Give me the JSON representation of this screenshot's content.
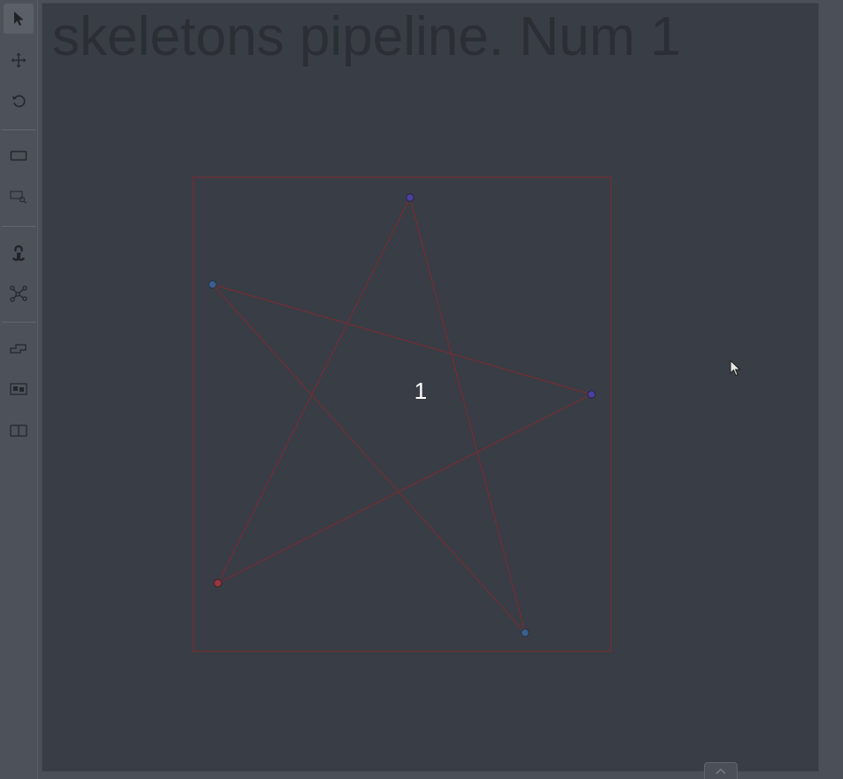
{
  "canvas": {
    "background_text": "skeletons pipeline. Num 1",
    "object_label": "1"
  },
  "toolbar": {
    "items": [
      {
        "name": "cursor-tool",
        "icon": "pointer-arrow-icon",
        "active": true
      },
      {
        "name": "move-tool",
        "icon": "move-arrows-icon",
        "active": false
      },
      {
        "name": "rotate-tool",
        "icon": "rotate-icon",
        "active": false
      },
      {
        "name": "fit-image-tool",
        "icon": "fit-image-icon",
        "active": false
      },
      {
        "name": "zoom-region-tool",
        "icon": "zoom-region-icon",
        "active": false
      },
      {
        "name": "opencv-tool",
        "icon": "opencv-icon",
        "active": false
      },
      {
        "name": "draw-skeleton-tool",
        "icon": "skeleton-icon",
        "active": false
      },
      {
        "name": "merge-tool",
        "icon": "merge-shapes-icon",
        "active": false
      },
      {
        "name": "group-tool",
        "icon": "group-icon",
        "active": false
      },
      {
        "name": "split-tool",
        "icon": "split-icon",
        "active": false
      }
    ]
  },
  "colors": {
    "bbox_stroke": "#6e2f35",
    "edge_stroke": "#6e2f35",
    "point_blue": "#3b5f8e",
    "point_indigo": "#4a3fa0",
    "point_red": "#9a3640",
    "label_text": "#ffffff"
  }
}
